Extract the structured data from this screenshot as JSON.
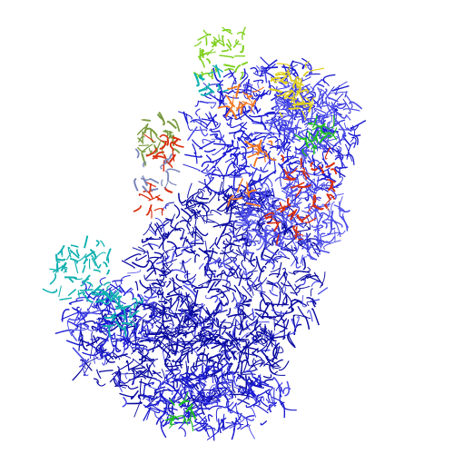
{
  "scene": {
    "subject": "ribosome-ribbon-render",
    "background_color": "#ffffff",
    "palette": {
      "rna_dark": "#0a0aa0",
      "rna_mid": "#1a1ad0",
      "rna_light": "#4a4ae8",
      "cyan": "#10b0b0",
      "red": "#d83010",
      "orange": "#f07820",
      "green": "#20c020",
      "lime": "#80d020",
      "yellow": "#e0d020",
      "olive": "#7a9a40",
      "grey_blue": "#7a86b8"
    }
  }
}
